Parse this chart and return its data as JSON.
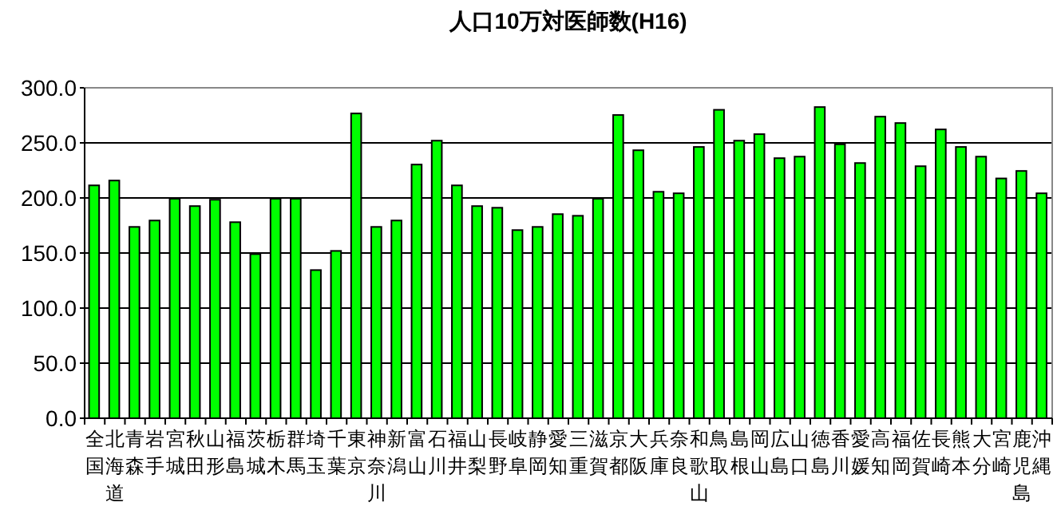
{
  "chart_data": {
    "type": "bar",
    "title": "人口10万対医師数(H16)",
    "categories": [
      "全国",
      "北海道",
      "青森",
      "岩手",
      "宮城",
      "秋田",
      "山形",
      "福島",
      "茨城",
      "栃木",
      "群馬",
      "埼玉",
      "千葉",
      "東京",
      "神奈川",
      "新潟",
      "富山",
      "石川",
      "福井",
      "山梨",
      "長野",
      "岐阜",
      "静岡",
      "愛知",
      "三重",
      "滋賀",
      "京都",
      "大阪",
      "兵庫",
      "奈良",
      "和歌山",
      "鳥取",
      "島根",
      "岡山",
      "広島",
      "山口",
      "徳島",
      "香川",
      "愛媛",
      "高知",
      "福岡",
      "佐賀",
      "長崎",
      "熊本",
      "大分",
      "宮崎",
      "鹿児島",
      "沖縄"
    ],
    "values": [
      211.4,
      215.8,
      173.7,
      179.5,
      199.3,
      192.6,
      198.4,
      178,
      149,
      199.3,
      199.3,
      134.5,
      151.9,
      276.7,
      173.7,
      179.5,
      230.3,
      252,
      211.4,
      192.6,
      191.1,
      170.8,
      173.7,
      185.3,
      183.8,
      199.3,
      275.3,
      243.3,
      205.6,
      204.2,
      246.3,
      280,
      252,
      257.9,
      236.1,
      237.5,
      282.5,
      248.7,
      231.7,
      273.8,
      268,
      228.8,
      262.2,
      246.3,
      237.5,
      217.7,
      224.5,
      204.2
    ],
    "color": "#00ff00",
    "ylim": [
      0,
      300
    ],
    "yticks": [
      {
        "value": 0,
        "label": "0.0"
      },
      {
        "value": 50,
        "label": "50.0"
      },
      {
        "value": 100,
        "label": "100.0"
      },
      {
        "value": 150,
        "label": "150.0"
      },
      {
        "value": 200,
        "label": "200.0"
      },
      {
        "value": 250,
        "label": "250.0"
      },
      {
        "value": 300,
        "label": "300.0"
      }
    ],
    "grid": "y"
  }
}
